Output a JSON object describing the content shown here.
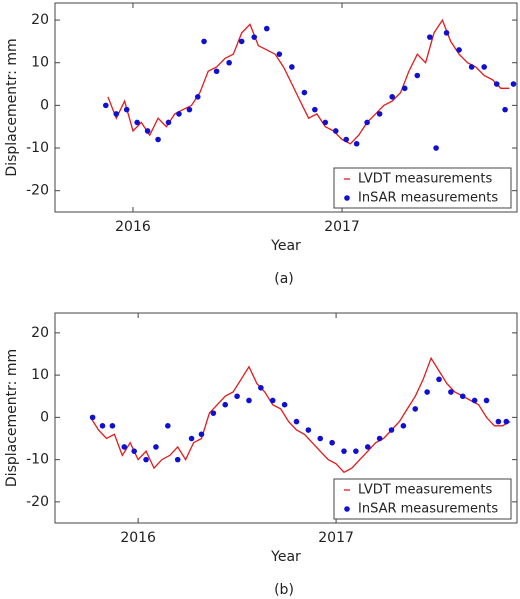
{
  "chart_data": [
    {
      "type": "line",
      "caption": "(a)",
      "xlabel": "Year",
      "ylabel": "Displacementr: mm",
      "xlim": [
        2015.627,
        2017.837
      ],
      "ylim": [
        -25,
        24
      ],
      "xticks": [
        2016,
        2017
      ],
      "yticks": [
        -20,
        -10,
        0,
        10,
        20
      ],
      "legend": "lower right",
      "series": [
        {
          "name": "LVDT measurements",
          "color": "#e41a1c",
          "style": "line",
          "x": [
            2015.88,
            2015.92,
            2015.96,
            2016.0,
            2016.04,
            2016.08,
            2016.12,
            2016.16,
            2016.2,
            2016.24,
            2016.28,
            2016.32,
            2016.36,
            2016.4,
            2016.44,
            2016.48,
            2016.52,
            2016.56,
            2016.6,
            2016.64,
            2016.68,
            2016.72,
            2016.76,
            2016.8,
            2016.84,
            2016.88,
            2016.92,
            2016.96,
            2017.0,
            2017.04,
            2017.08,
            2017.12,
            2017.16,
            2017.2,
            2017.24,
            2017.28,
            2017.32,
            2017.36,
            2017.4,
            2017.44,
            2017.48,
            2017.52,
            2017.56,
            2017.6,
            2017.64,
            2017.68,
            2017.72,
            2017.76,
            2017.8
          ],
          "values": [
            2,
            -3,
            1,
            -6,
            -4,
            -7,
            -3,
            -5,
            -2,
            -1,
            0,
            3,
            8,
            9,
            11,
            12,
            17,
            19,
            14,
            13,
            12,
            9,
            5,
            1,
            -3,
            -2,
            -5,
            -6,
            -8,
            -9,
            -7,
            -4,
            -2,
            0,
            1,
            3,
            8,
            12,
            10,
            17,
            20,
            15,
            12,
            10,
            9,
            7,
            6,
            4,
            4
          ]
        },
        {
          "name": "InSAR measurements",
          "color": "#1010d0",
          "style": "scatter",
          "x": [
            2015.87,
            2015.92,
            2015.97,
            2016.02,
            2016.07,
            2016.12,
            2016.17,
            2016.22,
            2016.27,
            2016.31,
            2016.34,
            2016.4,
            2016.46,
            2016.52,
            2016.58,
            2016.64,
            2016.7,
            2016.76,
            2016.82,
            2016.87,
            2016.92,
            2016.97,
            2017.02,
            2017.07,
            2017.12,
            2017.18,
            2017.24,
            2017.3,
            2017.36,
            2017.42,
            2017.45,
            2017.5,
            2017.56,
            2017.62,
            2017.68,
            2017.74,
            2017.78,
            2017.82
          ],
          "values": [
            0,
            -2,
            -1,
            -4,
            -6,
            -8,
            -4,
            -2,
            -1,
            2,
            15,
            8,
            10,
            15,
            16,
            18,
            12,
            9,
            3,
            -1,
            -4,
            -6,
            -8,
            -9,
            -4,
            -2,
            2,
            4,
            7,
            16,
            -10,
            17,
            13,
            9,
            9,
            5,
            -1,
            5
          ]
        }
      ]
    },
    {
      "type": "line",
      "caption": "(b)",
      "xlabel": "Year",
      "ylabel": "Displacementr: mm",
      "xlim": [
        2015.58,
        2017.914
      ],
      "ylim": [
        -25,
        24.7
      ],
      "xticks": [
        2016,
        2017
      ],
      "yticks": [
        -20,
        -10,
        0,
        10,
        20
      ],
      "legend": "lower right",
      "series": [
        {
          "name": "LVDT measurements",
          "color": "#e41a1c",
          "style": "line",
          "x": [
            2015.76,
            2015.8,
            2015.84,
            2015.88,
            2015.92,
            2015.96,
            2016.0,
            2016.04,
            2016.08,
            2016.12,
            2016.16,
            2016.2,
            2016.24,
            2016.28,
            2016.32,
            2016.36,
            2016.4,
            2016.44,
            2016.48,
            2016.52,
            2016.56,
            2016.6,
            2016.64,
            2016.68,
            2016.72,
            2016.76,
            2016.8,
            2016.84,
            2016.88,
            2016.92,
            2016.96,
            2017.0,
            2017.04,
            2017.08,
            2017.12,
            2017.16,
            2017.2,
            2017.24,
            2017.28,
            2017.32,
            2017.36,
            2017.4,
            2017.44,
            2017.48,
            2017.52,
            2017.56,
            2017.6,
            2017.64,
            2017.68,
            2017.72,
            2017.76,
            2017.8,
            2017.84,
            2017.88
          ],
          "values": [
            0,
            -3,
            -5,
            -4,
            -9,
            -6,
            -10,
            -8,
            -12,
            -10,
            -9,
            -7,
            -10,
            -6,
            -5,
            1,
            3,
            5,
            6,
            9,
            12,
            8,
            6,
            3,
            2,
            -1,
            -3,
            -4,
            -6,
            -8,
            -10,
            -11,
            -13,
            -12,
            -10,
            -8,
            -6,
            -5,
            -3,
            -1,
            2,
            5,
            9,
            14,
            11,
            8,
            6,
            5,
            4,
            3,
            0,
            -2,
            -2,
            -1
          ]
        },
        {
          "name": "InSAR measurements",
          "color": "#1010d0",
          "style": "scatter",
          "x": [
            2015.77,
            2015.82,
            2015.87,
            2015.93,
            2015.98,
            2016.04,
            2016.09,
            2016.15,
            2016.2,
            2016.27,
            2016.32,
            2016.38,
            2016.44,
            2016.5,
            2016.56,
            2016.62,
            2016.68,
            2016.74,
            2016.8,
            2016.86,
            2016.92,
            2016.98,
            2017.04,
            2017.1,
            2017.16,
            2017.22,
            2017.28,
            2017.34,
            2017.4,
            2017.46,
            2017.52,
            2017.58,
            2017.64,
            2017.7,
            2017.76,
            2017.82,
            2017.86
          ],
          "values": [
            0,
            -2,
            -2,
            -7,
            -8,
            -10,
            -7,
            -2,
            -10,
            -5,
            -4,
            1,
            3,
            5,
            4,
            7,
            4,
            3,
            -1,
            -3,
            -5,
            -6,
            -8,
            -8,
            -7,
            -5,
            -3,
            -2,
            2,
            6,
            9,
            6,
            5,
            4,
            4,
            -1,
            -1
          ]
        }
      ]
    }
  ]
}
